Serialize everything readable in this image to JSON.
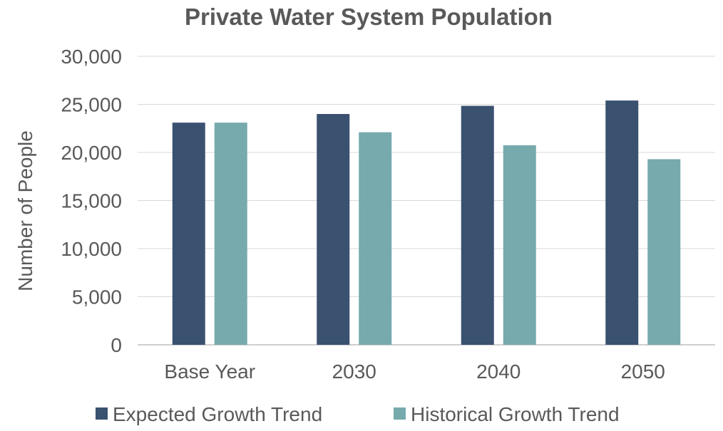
{
  "chart_data": {
    "type": "bar",
    "title": "Private Water System Population",
    "xlabel": "",
    "ylabel": "Number of People",
    "ylim": [
      0,
      30000
    ],
    "y_ticks": [
      "0",
      "5,000",
      "10,000",
      "15,000",
      "20,000",
      "25,000",
      "30,000"
    ],
    "y_tick_values": [
      0,
      5000,
      10000,
      15000,
      20000,
      25000,
      30000
    ],
    "categories": [
      "Base Year",
      "2030",
      "2040",
      "2050"
    ],
    "series": [
      {
        "name": "Expected Growth Trend",
        "color": "#3a5170",
        "values": [
          23100,
          24000,
          24850,
          25400
        ]
      },
      {
        "name": "Historical Growth Trend",
        "color": "#76aaad",
        "values": [
          23100,
          22100,
          20750,
          19300
        ]
      }
    ],
    "grid": true,
    "legend_position": "bottom"
  }
}
